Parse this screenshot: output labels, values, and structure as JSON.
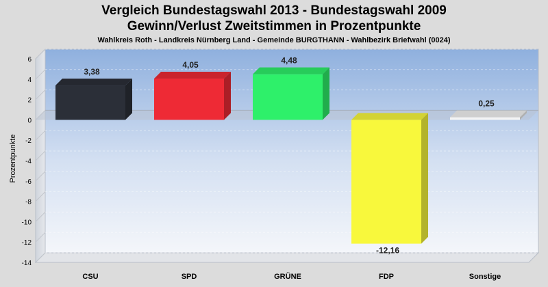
{
  "header": {
    "title_line1": "Vergleich Bundestagswahl 2013  - Bundestagswahl 2009",
    "title_line2": "Gewinn/Verlust Zweitstimmen in Prozentpunkte",
    "subtitle": "Wahlkreis Roth - Landkreis Nürnberg Land - Gemeinde BURGTHANN - Wahlbezirk Briefwahl (0024)"
  },
  "chart_data": {
    "type": "bar",
    "title": "Vergleich Bundestagswahl 2013  - Bundestagswahl 2009",
    "subtitle": "Gewinn/Verlust Zweitstimmen in Prozentpunkte",
    "ylabel": "Prozentpunkte",
    "xlabel": "",
    "ylim": [
      -14,
      6
    ],
    "yticks": [
      6,
      4,
      2,
      0,
      -2,
      -4,
      -6,
      -8,
      -10,
      -12,
      -14
    ],
    "grid": true,
    "categories": [
      "CSU",
      "SPD",
      "GRÜNE",
      "FDP",
      "Sonstige"
    ],
    "values": [
      3.38,
      4.05,
      4.48,
      -12.16,
      0.25
    ],
    "value_labels": [
      "3,38",
      "4,05",
      "4,48",
      "-12,16",
      "0,25"
    ],
    "colors": [
      "#2b2f38",
      "#ee2a35",
      "#2ef06a",
      "#f8f83c",
      "#f4f4f4"
    ]
  }
}
